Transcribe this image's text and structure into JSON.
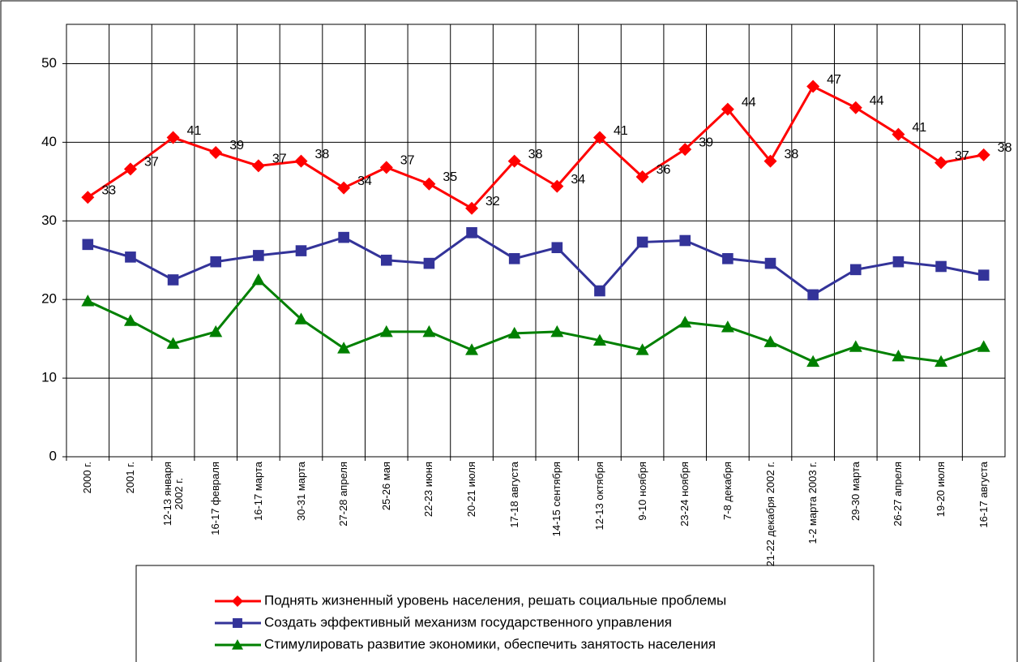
{
  "chart_data": {
    "type": "line",
    "categories": [
      "2000 г.",
      "2001 г.",
      "12-13 января\n2002 г.",
      "16-17 февраля",
      "16-17 марта",
      "30-31 марта",
      "27-28 апреля",
      "25-26 мая",
      "22-23 июня",
      "20-21 июля",
      "17-18 августа",
      "14-15 сентября",
      "12-13 октября",
      "9-10 ноября",
      "23-24 ноября",
      "7-8 декабря",
      "21-22 декабря 2002 г.",
      "1-2 марта 2003 г.",
      "29-30 марта",
      "26-27 апреля",
      "19-20 июля",
      "16-17 августа"
    ],
    "series": [
      {
        "name": "Поднять жизненный уровень населения, решать социальные проблемы",
        "color": "#ff0000",
        "marker": "diamond",
        "values": [
          33,
          36.6,
          40.6,
          38.7,
          37,
          37.6,
          34.2,
          36.8,
          34.7,
          31.6,
          37.6,
          34.4,
          40.6,
          35.6,
          39.1,
          44.2,
          37.6,
          47.1,
          44.4,
          41,
          37.4,
          38.4
        ],
        "value_labels": [
          "33",
          "37",
          "41",
          "39",
          "37",
          "38",
          "34",
          "37",
          "35",
          "32",
          "38",
          "34",
          "41",
          "36",
          "39",
          "44",
          "38",
          "47",
          "44",
          "41",
          "37",
          "38"
        ]
      },
      {
        "name": "Создать эффективный механизм государственного управления",
        "color": "#333399",
        "marker": "square",
        "values": [
          27,
          25.4,
          22.5,
          24.8,
          25.6,
          26.2,
          27.9,
          25,
          24.6,
          28.5,
          25.2,
          26.6,
          21.1,
          27.3,
          27.5,
          25.2,
          24.6,
          20.6,
          23.8,
          24.8,
          24.2,
          23.1
        ]
      },
      {
        "name": "Стимулировать развитие экономики, обеспечить занятость населения",
        "color": "#008000",
        "marker": "triangle",
        "values": [
          19.8,
          17.3,
          14.4,
          15.9,
          22.5,
          17.5,
          13.8,
          15.9,
          15.9,
          13.6,
          15.7,
          15.9,
          14.8,
          13.6,
          17.1,
          16.5,
          14.6,
          12.1,
          14,
          12.8,
          12.1,
          14
        ]
      }
    ],
    "ylim": [
      0,
      55
    ],
    "yticks": [
      0,
      10,
      20,
      30,
      40,
      50
    ],
    "grid": true,
    "legend": "bottom"
  }
}
